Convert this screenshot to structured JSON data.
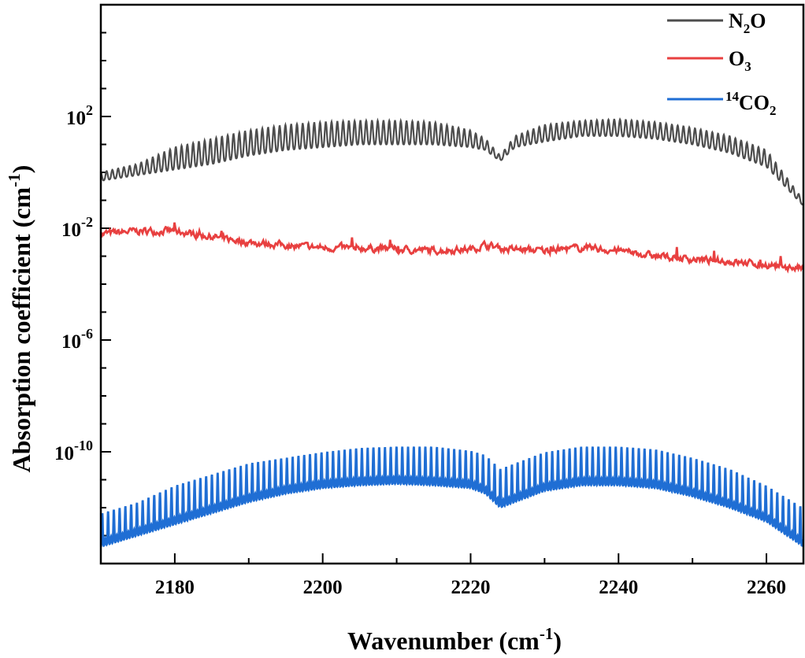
{
  "chart_data": {
    "type": "line",
    "xlabel": "Wavenumber (cm-1)",
    "xlabel_parts": {
      "main": "Wavenumber (cm",
      "sup": "-1",
      "end": ")"
    },
    "ylabel": "Absorption coefficient (cm-1)",
    "ylabel_parts": {
      "main": "Absorption coefficient (cm",
      "sup": "-1",
      "end": ")"
    },
    "xlim": [
      2170,
      2265
    ],
    "ylim_log10": [
      -14,
      6
    ],
    "yscale": "log",
    "x_ticks": [
      2180,
      2200,
      2220,
      2240,
      2260
    ],
    "x_tick_labels": [
      "2180",
      "2200",
      "2220",
      "2240",
      "2260"
    ],
    "y_ticks_log10": [
      2,
      -2,
      -6,
      -10
    ],
    "y_tick_labels": [
      {
        "base": "10",
        "exp": "2"
      },
      {
        "base": "10",
        "exp": "-2"
      },
      {
        "base": "10",
        "exp": "-6"
      },
      {
        "base": "10",
        "exp": "-10"
      }
    ],
    "legend_position": "top-right",
    "legend": [
      {
        "pre": "",
        "main": "N",
        "sub": "2",
        "post": "O"
      },
      {
        "pre": "",
        "main": "O",
        "sub": "3",
        "post": ""
      },
      {
        "pre": "14",
        "main": "CO",
        "sub": "2",
        "post": ""
      }
    ],
    "series": [
      {
        "color": "#4d4d4d",
        "envelope_x": [
          2170,
          2175,
          2180,
          2185,
          2190,
          2195,
          2200,
          2205,
          2210,
          2215,
          2220,
          2222,
          2224,
          2226,
          2230,
          2235,
          2240,
          2245,
          2250,
          2255,
          2260,
          2265
        ],
        "upper_log10": [
          0.0,
          0.3,
          0.9,
          1.2,
          1.5,
          1.7,
          1.8,
          1.85,
          1.85,
          1.8,
          1.5,
          1.2,
          0.6,
          1.3,
          1.7,
          1.85,
          1.9,
          1.8,
          1.6,
          1.3,
          0.8,
          -1.0
        ],
        "lower_log10": [
          -0.3,
          -0.1,
          0.1,
          0.3,
          0.6,
          0.8,
          0.9,
          1.0,
          1.0,
          1.0,
          0.9,
          0.8,
          0.4,
          0.9,
          1.1,
          1.3,
          1.3,
          1.2,
          1.0,
          0.7,
          0.2,
          -1.2
        ],
        "line_spacing": 0.78
      },
      {
        "color": "#e84040",
        "x": [
          2170,
          2175,
          2180,
          2185,
          2190,
          2195,
          2200,
          2205,
          2210,
          2215,
          2220,
          2222,
          2225,
          2230,
          2235,
          2240,
          2245,
          2250,
          2255,
          2260,
          2265
        ],
        "mean_log10": [
          -2.2,
          -2.1,
          -2.1,
          -2.3,
          -2.5,
          -2.6,
          -2.7,
          -2.7,
          -2.75,
          -2.8,
          -2.75,
          -2.6,
          -2.75,
          -2.8,
          -2.7,
          -2.8,
          -3.0,
          -3.1,
          -3.2,
          -3.3,
          -3.45
        ],
        "noise": 0.22
      },
      {
        "color": "#1f6ed4",
        "envelope_x": [
          2170,
          2175,
          2180,
          2185,
          2190,
          2195,
          2200,
          2205,
          2210,
          2215,
          2220,
          2222,
          2224,
          2226,
          2230,
          2235,
          2240,
          2245,
          2250,
          2255,
          2260,
          2265
        ],
        "peak_log10": [
          -12.2,
          -11.8,
          -11.2,
          -10.8,
          -10.4,
          -10.2,
          -10.0,
          -9.85,
          -9.8,
          -9.8,
          -9.95,
          -10.1,
          -10.6,
          -10.4,
          -10.0,
          -9.8,
          -9.8,
          -9.9,
          -10.2,
          -10.6,
          -11.2,
          -12.0
        ],
        "base_log10": [
          -13.4,
          -13.0,
          -12.6,
          -12.2,
          -11.8,
          -11.5,
          -11.3,
          -11.2,
          -11.15,
          -11.2,
          -11.3,
          -11.5,
          -12.0,
          -11.8,
          -11.4,
          -11.2,
          -11.2,
          -11.3,
          -11.6,
          -12.0,
          -12.5,
          -13.4
        ],
        "line_spacing": 0.78
      }
    ]
  }
}
